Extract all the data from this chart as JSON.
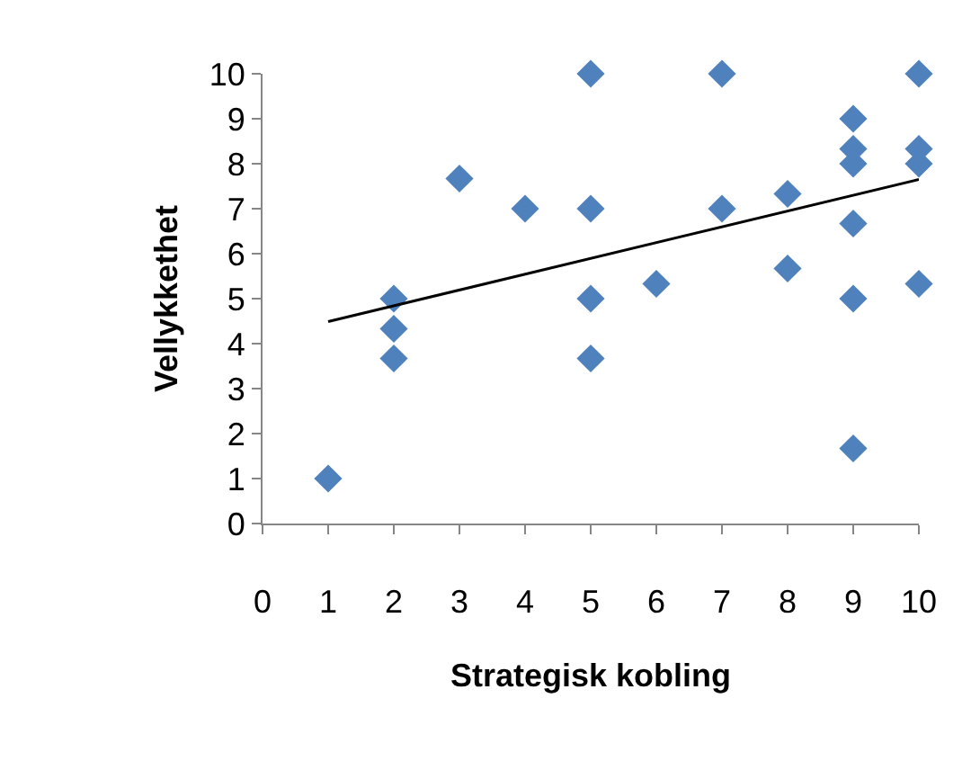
{
  "chart_data": {
    "type": "scatter",
    "xlabel": "Strategisk kobling",
    "ylabel": "Vellykkethet",
    "xlim": [
      0,
      10
    ],
    "ylim": [
      0,
      10
    ],
    "xticks": [
      0,
      1,
      2,
      3,
      4,
      5,
      6,
      7,
      8,
      9,
      10
    ],
    "yticks": [
      0,
      1,
      2,
      3,
      4,
      5,
      6,
      7,
      8,
      9,
      10
    ],
    "grid": false,
    "series": [
      {
        "type": "scatter",
        "marker": "diamond",
        "color": "#4f81bd",
        "x": [
          1,
          2,
          2,
          2,
          3,
          4,
          5,
          5,
          5,
          5,
          6,
          7,
          7,
          8,
          8,
          9,
          9,
          9,
          9,
          9,
          9,
          10,
          10,
          10,
          10
        ],
        "values": [
          1,
          5,
          4.33,
          3.67,
          7.67,
          7,
          10,
          7,
          5,
          3.67,
          5.33,
          10,
          7,
          7.33,
          5.67,
          9,
          8.33,
          8,
          6.67,
          5,
          1.67,
          10,
          8.33,
          8,
          5.33
        ]
      },
      {
        "type": "line",
        "marker": "none",
        "color": "#000000",
        "x": [
          1,
          10
        ],
        "values": [
          4.49,
          7.65
        ]
      }
    ]
  }
}
